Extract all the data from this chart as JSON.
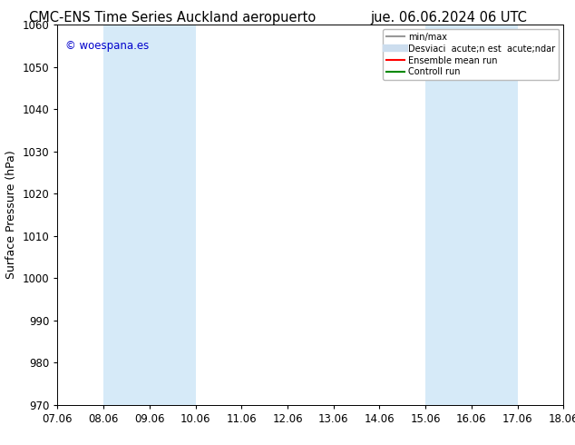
{
  "title_left": "CMC-ENS Time Series Auckland aeropuerto",
  "title_right": "jue. 06.06.2024 06 UTC",
  "ylabel": "Surface Pressure (hPa)",
  "ylim": [
    970,
    1060
  ],
  "yticks": [
    970,
    980,
    990,
    1000,
    1010,
    1020,
    1030,
    1040,
    1050,
    1060
  ],
  "xtick_labels": [
    "07.06",
    "08.06",
    "09.06",
    "10.06",
    "11.06",
    "12.06",
    "13.06",
    "14.06",
    "15.06",
    "16.06",
    "17.06",
    "18.06"
  ],
  "n_xticks": 12,
  "shade_bands": [
    {
      "xmin": 1,
      "xmax": 2,
      "color": "#d6eaf8"
    },
    {
      "xmin": 2,
      "xmax": 3,
      "color": "#d6eaf8"
    },
    {
      "xmin": 8,
      "xmax": 9,
      "color": "#d6eaf8"
    },
    {
      "xmin": 9,
      "xmax": 10,
      "color": "#d6eaf8"
    }
  ],
  "shade_bands2": [
    {
      "xmin": 1,
      "xmax": 3,
      "color": "#d6eaf8"
    },
    {
      "xmin": 8,
      "xmax": 10,
      "color": "#d6eaf8"
    }
  ],
  "watermark_text": "© woespana.es",
  "watermark_color": "#0000cc",
  "legend_label_minmax": "min/max",
  "legend_label_desv": "Desviaci  acute;n est  acute;ndar",
  "legend_label_ensemble": "Ensemble mean run",
  "legend_label_control": "Controll run",
  "legend_color_minmax": "#999999",
  "legend_color_desv": "#ccddee",
  "legend_color_ensemble": "#ff0000",
  "legend_color_control": "#008800",
  "background_color": "#ffffff",
  "title_fontsize": 10.5,
  "tick_fontsize": 8.5,
  "ylabel_fontsize": 9
}
